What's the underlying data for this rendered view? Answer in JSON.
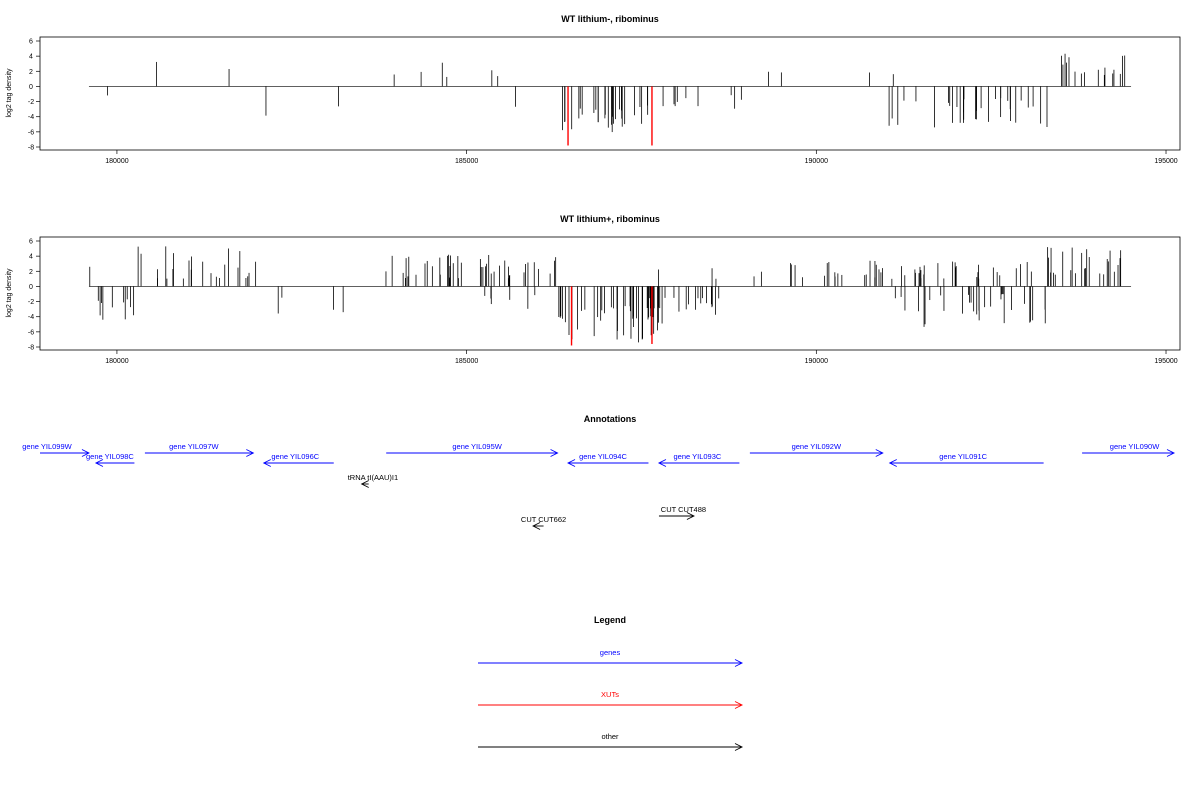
{
  "chart_data": [
    {
      "type": "bar",
      "title": "WT lithium-, ribominus",
      "xlabel": "",
      "ylabel": "log2 tag density",
      "xlim": [
        178900,
        195200
      ],
      "ylim": [
        -8,
        6
      ],
      "xticks": [
        180000,
        185000,
        190000,
        195000
      ],
      "yticks": [
        6,
        4,
        2,
        0,
        -2,
        -4,
        -6,
        -8
      ],
      "data_range": [
        179600,
        194500
      ],
      "highlight_color": "#ff0000",
      "bar_color": "#000000",
      "regions": [
        {
          "x_start": 179700,
          "x_end": 180300,
          "sign": -1,
          "min": 1.0,
          "max": 3.2,
          "density": 0.18
        },
        {
          "x_start": 180500,
          "x_end": 181000,
          "sign": 1,
          "min": 1.0,
          "max": 4.6,
          "density": 0.15
        },
        {
          "x_start": 181500,
          "x_end": 181700,
          "sign": 1,
          "min": 1.5,
          "max": 2.6,
          "density": 0.25
        },
        {
          "x_start": 181900,
          "x_end": 182300,
          "sign": -1,
          "min": 1.0,
          "max": 4.5,
          "density": 0.3
        },
        {
          "x_start": 182600,
          "x_end": 183500,
          "sign": -1,
          "min": 0.8,
          "max": 3.5,
          "density": 0.15
        },
        {
          "x_start": 183800,
          "x_end": 185500,
          "sign": 1,
          "min": 1.0,
          "max": 4.0,
          "density": 0.35
        },
        {
          "x_start": 185500,
          "x_end": 186200,
          "sign": -1,
          "min": 1.0,
          "max": 3.0,
          "density": 0.2
        },
        {
          "x_start": 186300,
          "x_end": 187900,
          "sign": -1,
          "min": 2.5,
          "max": 6.2,
          "density": 2.0
        },
        {
          "x_start": 187900,
          "x_end": 189000,
          "sign": -1,
          "min": 1.0,
          "max": 3.6,
          "density": 0.7
        },
        {
          "x_start": 189000,
          "x_end": 189800,
          "sign": 1,
          "min": 1.0,
          "max": 3.5,
          "density": 0.3
        },
        {
          "x_start": 190400,
          "x_end": 191200,
          "sign": 1,
          "min": 1.0,
          "max": 3.4,
          "density": 0.25
        },
        {
          "x_start": 191000,
          "x_end": 193300,
          "sign": -1,
          "min": 1.5,
          "max": 5.5,
          "density": 1.4
        },
        {
          "x_start": 193500,
          "x_end": 194500,
          "sign": 1,
          "min": 1.5,
          "max": 4.4,
          "density": 1.6
        }
      ],
      "highlights": [
        {
          "x": 186450,
          "y": -7.8
        },
        {
          "x": 187650,
          "y": -7.8
        }
      ]
    },
    {
      "type": "bar",
      "title": "WT lithium+, ribominus",
      "xlabel": "",
      "ylabel": "log2 tag density",
      "xlim": [
        178900,
        195200
      ],
      "ylim": [
        -8,
        6
      ],
      "xticks": [
        180000,
        185000,
        190000,
        195000
      ],
      "yticks": [
        6,
        4,
        2,
        0,
        -2,
        -4,
        -6,
        -8
      ],
      "data_range": [
        179600,
        194500
      ],
      "highlight_color": "#ff0000",
      "bar_color": "#000000",
      "regions": [
        {
          "x_start": 179600,
          "x_end": 179700,
          "sign": 1,
          "min": 1.0,
          "max": 3.8,
          "density": 0.6
        },
        {
          "x_start": 179700,
          "x_end": 180400,
          "sign": -1,
          "min": 1.5,
          "max": 4.5,
          "density": 1.4
        },
        {
          "x_start": 180300,
          "x_end": 182000,
          "sign": 1,
          "min": 1.0,
          "max": 5.5,
          "density": 1.4
        },
        {
          "x_start": 182100,
          "x_end": 183300,
          "sign": -1,
          "min": 1.0,
          "max": 4.0,
          "density": 0.3
        },
        {
          "x_start": 183800,
          "x_end": 186300,
          "sign": 1,
          "min": 1.0,
          "max": 4.2,
          "density": 1.8
        },
        {
          "x_start": 185100,
          "x_end": 186300,
          "sign": -1,
          "min": 1.0,
          "max": 3.0,
          "density": 0.5
        },
        {
          "x_start": 186300,
          "x_end": 187800,
          "sign": -1,
          "min": 2.5,
          "max": 7.5,
          "density": 3.0
        },
        {
          "x_start": 187600,
          "x_end": 188700,
          "sign": -1,
          "min": 1.5,
          "max": 4.5,
          "density": 1.6
        },
        {
          "x_start": 187700,
          "x_end": 188700,
          "sign": 1,
          "min": 1.0,
          "max": 2.5,
          "density": 0.3
        },
        {
          "x_start": 189000,
          "x_end": 193200,
          "sign": 1,
          "min": 1.0,
          "max": 3.5,
          "density": 1.2
        },
        {
          "x_start": 191100,
          "x_end": 193300,
          "sign": -1,
          "min": 1.0,
          "max": 5.5,
          "density": 1.4
        },
        {
          "x_start": 193300,
          "x_end": 194500,
          "sign": 1,
          "min": 1.5,
          "max": 6.0,
          "density": 2.0
        }
      ],
      "highlights": [
        {
          "x": 186500,
          "y": -7.8
        },
        {
          "x": 187650,
          "y": -7.6
        }
      ]
    }
  ],
  "annotations": {
    "title": "Annotations",
    "features": [
      {
        "label": "gene YIL099W",
        "start": 178900,
        "end": 179600,
        "strand": "+",
        "color": "#0000ff",
        "row": 0,
        "label_x": 179000
      },
      {
        "label": "gene YIL098C",
        "start": 179700,
        "end": 180250,
        "strand": "-",
        "color": "#0000ff",
        "row": 1,
        "label_x": 179900
      },
      {
        "label": "gene YIL097W",
        "start": 180400,
        "end": 181950,
        "strand": "+",
        "color": "#0000ff",
        "row": 0,
        "label_x": 181100
      },
      {
        "label": "gene YIL096C",
        "start": 182100,
        "end": 183100,
        "strand": "-",
        "color": "#0000ff",
        "row": 1,
        "label_x": 182550
      },
      {
        "label": "gene YIL095W",
        "start": 183850,
        "end": 186300,
        "strand": "+",
        "color": "#0000ff",
        "row": 0,
        "label_x": 185150
      },
      {
        "label": "gene YIL094C",
        "start": 186450,
        "end": 187600,
        "strand": "-",
        "color": "#0000ff",
        "row": 1,
        "label_x": 186950
      },
      {
        "label": "gene YIL093C",
        "start": 187750,
        "end": 188900,
        "strand": "-",
        "color": "#0000ff",
        "row": 1,
        "label_x": 188300
      },
      {
        "label": "gene YIL092W",
        "start": 189050,
        "end": 190950,
        "strand": "+",
        "color": "#0000ff",
        "row": 0,
        "label_x": 190000
      },
      {
        "label": "gene YIL091C",
        "start": 191050,
        "end": 193250,
        "strand": "-",
        "color": "#0000ff",
        "row": 1,
        "label_x": 192100
      },
      {
        "label": "gene YIL090W",
        "start": 193800,
        "end": 195300,
        "strand": "+",
        "color": "#0000ff",
        "row": 0,
        "label_x": 194550
      },
      {
        "label": "tRNA tI(AAU)I1",
        "start": 183500,
        "end": 183600,
        "strand": "-",
        "color": "#000000",
        "row": 2,
        "label_x": 183660
      },
      {
        "label": "CUT CUT488",
        "start": 187750,
        "end": 188250,
        "strand": "+",
        "color": "#000000",
        "row": 3,
        "label_x": 188100
      },
      {
        "label": "CUT CUT662",
        "start": 185950,
        "end": 186100,
        "strand": "-",
        "color": "#000000",
        "row": 4,
        "label_x": 186100
      }
    ]
  },
  "legend": {
    "title": "Legend",
    "items": [
      {
        "label": "genes",
        "color": "#0000ff"
      },
      {
        "label": "XUTs",
        "color": "#ff0000"
      },
      {
        "label": "other",
        "color": "#000000"
      }
    ]
  }
}
